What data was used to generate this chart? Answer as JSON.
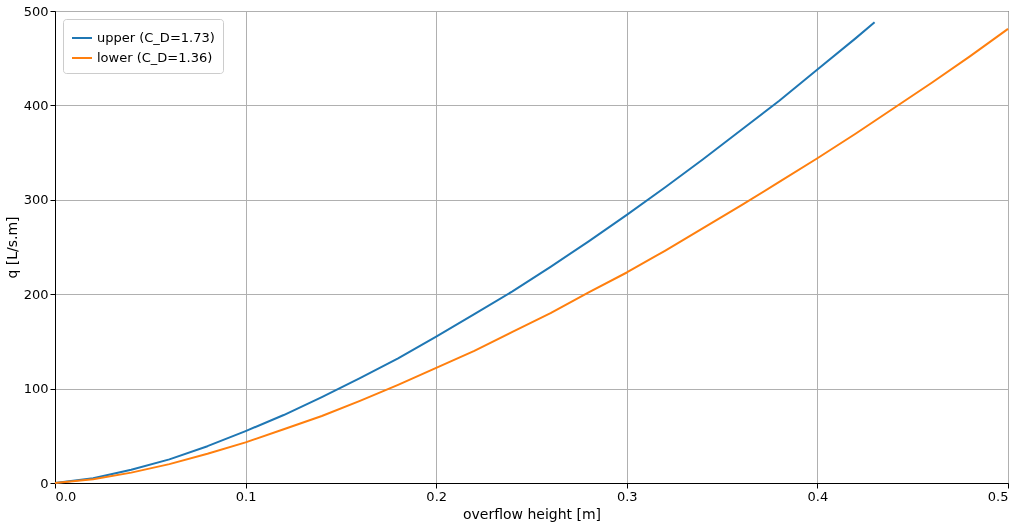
{
  "chart_data": {
    "type": "line",
    "xlabel": "overflow height [m]",
    "ylabel": "q [L/s.m]",
    "xlim": [
      0,
      0.5
    ],
    "ylim": [
      0,
      500
    ],
    "xticks": [
      {
        "value": 0,
        "label": "0.0"
      },
      0.1,
      0.2,
      0.3,
      0.4,
      0.5
    ],
    "yticks": [
      0,
      100,
      200,
      300,
      400,
      500
    ],
    "grid": true,
    "legend": "top left",
    "line_style": "solid",
    "marker": "none",
    "series": [
      {
        "name": "upper (C_D=1.73)",
        "color": "#1f77b4",
        "x": [
          0,
          0.02,
          0.04,
          0.06,
          0.08,
          0.1,
          0.12,
          0.14,
          0.16,
          0.18,
          0.2,
          0.22,
          0.24,
          0.26,
          0.28,
          0.3,
          0.32,
          0.34,
          0.36,
          0.38,
          0.4,
          0.42,
          0.43
        ],
        "values": [
          0,
          5,
          14,
          25,
          39,
          55,
          72,
          91,
          111,
          132,
          155,
          179,
          203,
          229,
          256,
          284,
          313,
          343,
          374,
          405,
          438,
          471,
          488
        ]
      },
      {
        "name": "lower (C_D=1.36)",
        "color": "#ff7f0e",
        "x": [
          0,
          0.02,
          0.04,
          0.06,
          0.08,
          0.1,
          0.12,
          0.14,
          0.16,
          0.18,
          0.2,
          0.22,
          0.24,
          0.26,
          0.28,
          0.3,
          0.32,
          0.34,
          0.36,
          0.38,
          0.4,
          0.42,
          0.44,
          0.46,
          0.48,
          0.5
        ],
        "values": [
          0,
          4,
          11,
          20,
          31,
          43,
          57,
          71,
          87,
          104,
          122,
          140,
          160,
          180,
          202,
          223,
          246,
          270,
          294,
          319,
          344,
          370,
          397,
          424,
          452,
          481
        ]
      }
    ]
  }
}
